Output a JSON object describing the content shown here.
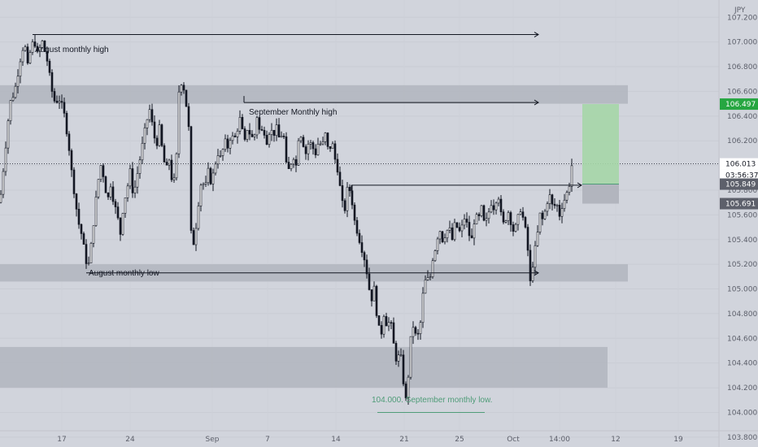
{
  "chart_data": {
    "type": "candlestick",
    "currency_unit": "JPY",
    "price_axis": {
      "ylim": [
        103.72,
        107.34
      ],
      "tick_labels": [
        "107.200",
        "107.000",
        "106.800",
        "106.600",
        "106.400",
        "106.200",
        "106.000",
        "105.800",
        "105.600",
        "105.400",
        "105.200",
        "105.000",
        "104.800",
        "104.600",
        "104.400",
        "104.200",
        "104.000",
        "103.800"
      ],
      "tick_values": [
        107.2,
        107.0,
        106.8,
        106.6,
        106.4,
        106.2,
        106.0,
        105.8,
        105.6,
        105.4,
        105.2,
        105.0,
        104.8,
        104.6,
        104.4,
        104.2,
        104.0,
        103.8
      ]
    },
    "time_axis": {
      "tick_labels": [
        "17",
        "24",
        "Sep",
        "7",
        "14",
        "21",
        "25",
        "Oct",
        "14:00",
        "12",
        "19"
      ]
    },
    "price_tags": {
      "target": "106.497",
      "current": "106.013",
      "countdown": "03:56:37",
      "entry": "105.849",
      "stop": "105.691"
    },
    "zones": [
      {
        "name": "upper-resistance-zone",
        "low": 106.5,
        "high": 106.65
      },
      {
        "name": "monthly-low-support-zone",
        "low": 105.06,
        "high": 105.2
      },
      {
        "name": "deep-demand-zone",
        "low": 104.2,
        "high": 104.53
      }
    ],
    "annotations": {
      "aug_high": "August monthly high",
      "sep_high": "September Monthly high",
      "aug_low": "August monthly low",
      "sep_low": "104.000. September monthly low."
    },
    "levels": {
      "aug_high": 107.06,
      "sep_high": 106.51,
      "aug_low": 105.13,
      "breakout": 105.84,
      "sep_low": 104.0
    },
    "position": {
      "target": 106.497,
      "entry": 105.849,
      "stop": 105.691
    },
    "close_path": [
      [
        0,
        105.7
      ],
      [
        6,
        106.1
      ],
      [
        12,
        106.5
      ],
      [
        18,
        106.6
      ],
      [
        22,
        106.75
      ],
      [
        26,
        106.9
      ],
      [
        30,
        107.0
      ],
      [
        34,
        106.8
      ],
      [
        38,
        106.95
      ],
      [
        42,
        107.02
      ],
      [
        46,
        106.9
      ],
      [
        52,
        107.0
      ],
      [
        58,
        106.85
      ],
      [
        64,
        106.6
      ],
      [
        68,
        106.5
      ],
      [
        72,
        106.55
      ],
      [
        78,
        106.45
      ],
      [
        84,
        106.2
      ],
      [
        88,
        105.95
      ],
      [
        92,
        105.75
      ],
      [
        96,
        105.55
      ],
      [
        100,
        105.45
      ],
      [
        104,
        105.3
      ],
      [
        108,
        105.15
      ],
      [
        112,
        105.35
      ],
      [
        116,
        105.6
      ],
      [
        120,
        105.85
      ],
      [
        124,
        106.0
      ],
      [
        128,
        105.9
      ],
      [
        132,
        105.7
      ],
      [
        136,
        105.85
      ],
      [
        140,
        105.7
      ],
      [
        144,
        105.6
      ],
      [
        148,
        105.45
      ],
      [
        152,
        105.7
      ],
      [
        156,
        105.8
      ],
      [
        160,
        105.95
      ],
      [
        164,
        105.75
      ],
      [
        168,
        105.9
      ],
      [
        172,
        106.05
      ],
      [
        176,
        106.2
      ],
      [
        180,
        106.35
      ],
      [
        184,
        106.45
      ],
      [
        188,
        106.3
      ],
      [
        192,
        106.15
      ],
      [
        196,
        106.3
      ],
      [
        200,
        106.1
      ],
      [
        204,
        105.95
      ],
      [
        208,
        106.05
      ],
      [
        212,
        105.85
      ],
      [
        216,
        105.9
      ],
      [
        220,
        106.6
      ],
      [
        224,
        106.7
      ],
      [
        228,
        106.55
      ],
      [
        232,
        106.3
      ],
      [
        234,
        105.6
      ],
      [
        236,
        105.3
      ],
      [
        240,
        105.45
      ],
      [
        244,
        105.7
      ],
      [
        248,
        105.9
      ],
      [
        252,
        105.8
      ],
      [
        256,
        105.95
      ],
      [
        260,
        105.85
      ],
      [
        264,
        106.0
      ],
      [
        268,
        106.1
      ],
      [
        272,
        106.05
      ],
      [
        276,
        106.2
      ],
      [
        280,
        106.15
      ],
      [
        284,
        106.25
      ],
      [
        288,
        106.2
      ],
      [
        292,
        106.3
      ],
      [
        296,
        106.4
      ],
      [
        300,
        106.15
      ],
      [
        304,
        106.3
      ],
      [
        308,
        106.25
      ],
      [
        312,
        106.2
      ],
      [
        316,
        106.4
      ],
      [
        320,
        106.25
      ],
      [
        324,
        106.3
      ],
      [
        328,
        106.2
      ],
      [
        332,
        106.3
      ],
      [
        336,
        106.25
      ],
      [
        340,
        106.3
      ],
      [
        344,
        106.2
      ],
      [
        348,
        106.3
      ],
      [
        352,
        106.0
      ],
      [
        356,
        105.95
      ],
      [
        360,
        106.1
      ],
      [
        364,
        106.0
      ],
      [
        368,
        106.3
      ],
      [
        372,
        106.2
      ],
      [
        376,
        106.1
      ],
      [
        380,
        106.2
      ],
      [
        384,
        106.15
      ],
      [
        388,
        106.1
      ],
      [
        392,
        106.2
      ],
      [
        396,
        106.15
      ],
      [
        400,
        106.25
      ],
      [
        404,
        106.1
      ],
      [
        408,
        106.2
      ],
      [
        412,
        106.05
      ],
      [
        416,
        105.95
      ],
      [
        420,
        105.7
      ],
      [
        424,
        105.65
      ],
      [
        428,
        105.85
      ],
      [
        432,
        105.75
      ],
      [
        436,
        105.55
      ],
      [
        440,
        105.45
      ],
      [
        444,
        105.35
      ],
      [
        448,
        105.25
      ],
      [
        452,
        105.1
      ],
      [
        456,
        104.9
      ],
      [
        460,
        105.0
      ],
      [
        464,
        104.75
      ],
      [
        468,
        104.6
      ],
      [
        472,
        104.8
      ],
      [
        476,
        104.7
      ],
      [
        480,
        104.75
      ],
      [
        484,
        104.55
      ],
      [
        488,
        104.4
      ],
      [
        492,
        104.5
      ],
      [
        496,
        104.25
      ],
      [
        500,
        104.05
      ],
      [
        504,
        104.55
      ],
      [
        508,
        104.7
      ],
      [
        512,
        104.6
      ],
      [
        516,
        104.65
      ],
      [
        520,
        104.95
      ],
      [
        524,
        105.1
      ],
      [
        528,
        105.05
      ],
      [
        532,
        105.25
      ],
      [
        536,
        105.35
      ],
      [
        540,
        105.5
      ],
      [
        544,
        105.4
      ],
      [
        548,
        105.45
      ],
      [
        552,
        105.5
      ],
      [
        556,
        105.4
      ],
      [
        560,
        105.55
      ],
      [
        564,
        105.45
      ],
      [
        568,
        105.5
      ],
      [
        572,
        105.6
      ],
      [
        576,
        105.45
      ],
      [
        580,
        105.4
      ],
      [
        584,
        105.6
      ],
      [
        588,
        105.55
      ],
      [
        592,
        105.65
      ],
      [
        596,
        105.5
      ],
      [
        600,
        105.6
      ],
      [
        604,
        105.7
      ],
      [
        608,
        105.65
      ],
      [
        612,
        105.8
      ],
      [
        616,
        105.6
      ],
      [
        620,
        105.5
      ],
      [
        624,
        105.65
      ],
      [
        628,
        105.55
      ],
      [
        632,
        105.45
      ],
      [
        636,
        105.55
      ],
      [
        640,
        105.65
      ],
      [
        644,
        105.55
      ],
      [
        648,
        105.4
      ],
      [
        652,
        105.05
      ],
      [
        656,
        105.25
      ],
      [
        660,
        105.4
      ],
      [
        664,
        105.6
      ],
      [
        668,
        105.55
      ],
      [
        672,
        105.7
      ],
      [
        676,
        105.75
      ],
      [
        680,
        105.65
      ],
      [
        684,
        105.7
      ],
      [
        688,
        105.6
      ],
      [
        692,
        105.7
      ],
      [
        696,
        105.75
      ],
      [
        700,
        105.85
      ],
      [
        704,
        106.05
      ]
    ]
  }
}
